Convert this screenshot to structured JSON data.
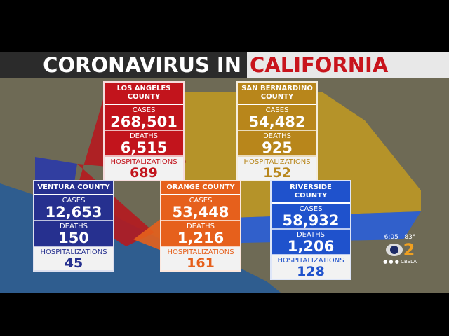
{
  "title": {
    "left": "CORONAVIRUS IN",
    "right": "CALIFORNIA"
  },
  "counties": [
    {
      "name": "LOS ANGELES COUNTY",
      "cases_label": "CASES",
      "cases": "268,501",
      "deaths_label": "DEATHS",
      "deaths": "6,515",
      "hosp_label": "HOSPITALIZATIONS",
      "hosp": "689",
      "color": "#c2141c"
    },
    {
      "name": "SAN BERNARDINO COUNTY",
      "cases_label": "CASES",
      "cases": "54,482",
      "deaths_label": "DEATHS",
      "deaths": "925",
      "hosp_label": "HOSPITALIZATIONS",
      "hosp": "152",
      "color": "#b8861b"
    },
    {
      "name": "VENTURA COUNTY",
      "cases_label": "CASES",
      "cases": "12,653",
      "deaths_label": "DEATHS",
      "deaths": "150",
      "hosp_label": "HOSPITALIZATIONS",
      "hosp": "45",
      "color": "#26308f"
    },
    {
      "name": "ORANGE COUNTY",
      "cases_label": "CASES",
      "cases": "53,448",
      "deaths_label": "DEATHS",
      "deaths": "1,216",
      "hosp_label": "HOSPITALIZATIONS",
      "hosp": "161",
      "color": "#e6601c"
    },
    {
      "name": "RIVERSIDE COUNTY",
      "cases_label": "CASES",
      "cases": "58,932",
      "deaths_label": "DEATHS",
      "deaths": "1,206",
      "hosp_label": "HOSPITALIZATIONS",
      "hosp": "128",
      "color": "#1f52cc"
    }
  ],
  "bug": {
    "time": "6:05",
    "temp": "83°",
    "channel": "2",
    "handle": "CBSLA"
  }
}
